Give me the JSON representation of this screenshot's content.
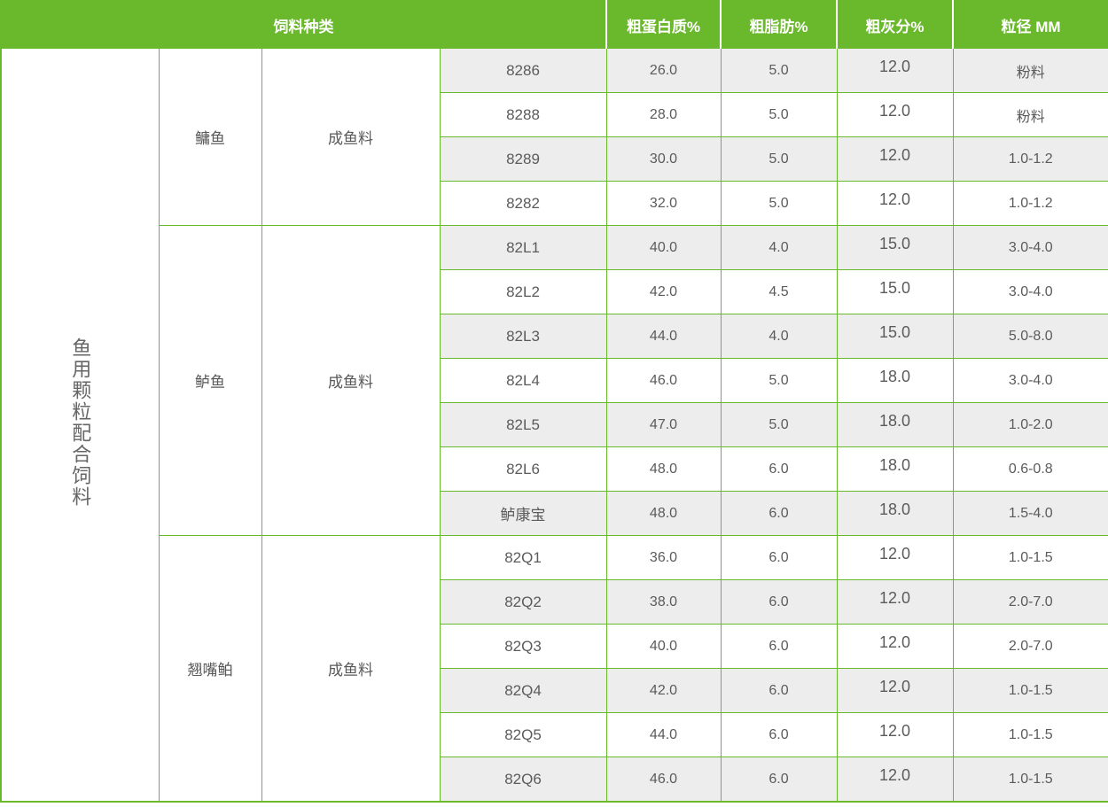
{
  "table": {
    "header": {
      "feed_type": "饲料种类",
      "crude_protein": "粗蛋白质%",
      "crude_fat": "粗脂肪%",
      "crude_ash": "粗灰分%",
      "particle_size": "粒径 MM"
    },
    "category": "鱼用颗粒配合饲料",
    "groups": [
      {
        "fish": "鳙鱼",
        "stage": "成鱼料",
        "rows": [
          {
            "code": "8286",
            "protein": "26.0",
            "fat": "5.0",
            "ash": "12.0",
            "size": "粉料"
          },
          {
            "code": "8288",
            "protein": "28.0",
            "fat": "5.0",
            "ash": "12.0",
            "size": "粉料"
          },
          {
            "code": "8289",
            "protein": "30.0",
            "fat": "5.0",
            "ash": "12.0",
            "size": "1.0-1.2"
          },
          {
            "code": "8282",
            "protein": "32.0",
            "fat": "5.0",
            "ash": "12.0",
            "size": "1.0-1.2"
          }
        ]
      },
      {
        "fish": "鲈鱼",
        "stage": "成鱼料",
        "rows": [
          {
            "code": "82L1",
            "protein": "40.0",
            "fat": "4.0",
            "ash": "15.0",
            "size": "3.0-4.0"
          },
          {
            "code": "82L2",
            "protein": "42.0",
            "fat": "4.5",
            "ash": "15.0",
            "size": "3.0-4.0"
          },
          {
            "code": "82L3",
            "protein": "44.0",
            "fat": "4.0",
            "ash": "15.0",
            "size": "5.0-8.0"
          },
          {
            "code": "82L4",
            "protein": "46.0",
            "fat": "5.0",
            "ash": "18.0",
            "size": "3.0-4.0"
          },
          {
            "code": "82L5",
            "protein": "47.0",
            "fat": "5.0",
            "ash": "18.0",
            "size": "1.0-2.0"
          },
          {
            "code": "82L6",
            "protein": "48.0",
            "fat": "6.0",
            "ash": "18.0",
            "size": "0.6-0.8"
          },
          {
            "code": "鲈康宝",
            "protein": "48.0",
            "fat": "6.0",
            "ash": "18.0",
            "size": "1.5-4.0"
          }
        ]
      },
      {
        "fish": "翘嘴鲌",
        "stage": "成鱼料",
        "rows": [
          {
            "code": "82Q1",
            "protein": "36.0",
            "fat": "6.0",
            "ash": "12.0",
            "size": "1.0-1.5"
          },
          {
            "code": "82Q2",
            "protein": "38.0",
            "fat": "6.0",
            "ash": "12.0",
            "size": "2.0-7.0"
          },
          {
            "code": "82Q3",
            "protein": "40.0",
            "fat": "6.0",
            "ash": "12.0",
            "size": "2.0-7.0"
          },
          {
            "code": "82Q4",
            "protein": "42.0",
            "fat": "6.0",
            "ash": "12.0",
            "size": "1.0-1.5"
          },
          {
            "code": "82Q5",
            "protein": "44.0",
            "fat": "6.0",
            "ash": "12.0",
            "size": "1.0-1.5"
          },
          {
            "code": "82Q6",
            "protein": "46.0",
            "fat": "6.0",
            "ash": "12.0",
            "size": "1.0-1.5"
          }
        ]
      }
    ],
    "colors": {
      "header_green": "#6ab82b",
      "row_alt_gray": "#ededed",
      "text_gray": "#5b5b5b"
    }
  }
}
